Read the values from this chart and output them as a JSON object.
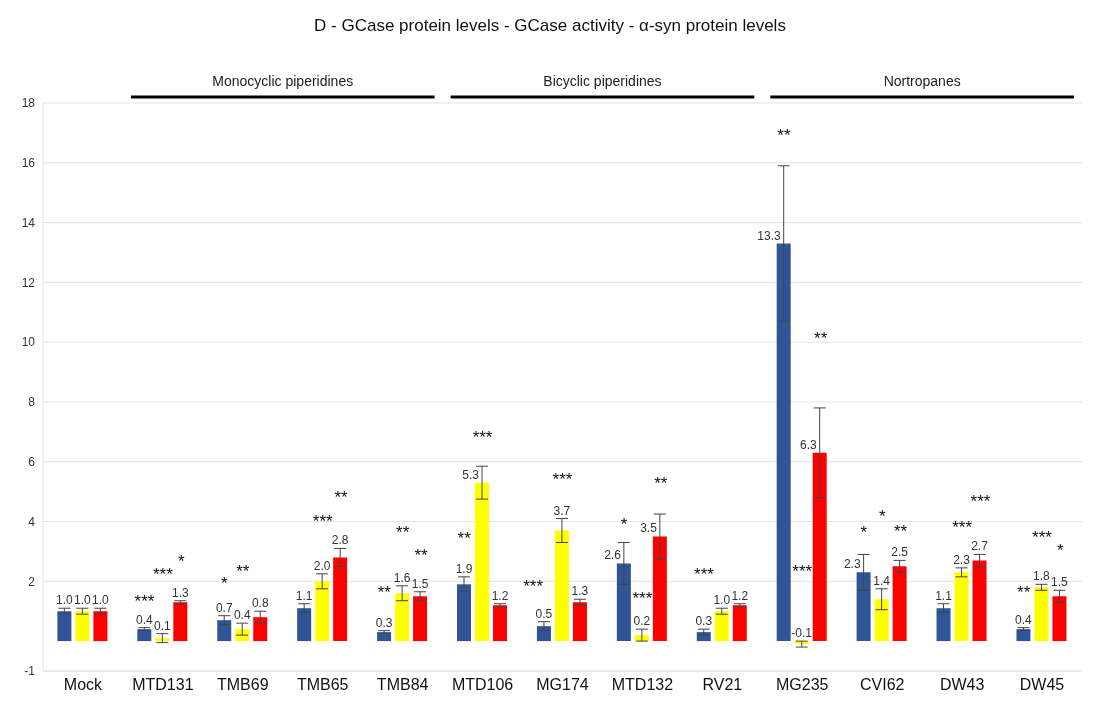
{
  "chart_data": {
    "type": "bar",
    "title": "D - GCase protein levels - GCase activity - α-syn protein levels",
    "categories": [
      "Mock",
      "MTD131",
      "TMB69",
      "TMB65",
      "TMB84",
      "MTD106",
      "MG174",
      "MTD132",
      "RV21",
      "MG235",
      "CVI62",
      "DW43",
      "DW45"
    ],
    "series": [
      {
        "color": "#2f5597",
        "values": [
          1.0,
          0.4,
          0.7,
          1.1,
          0.3,
          1.9,
          0.5,
          2.6,
          0.3,
          13.3,
          2.3,
          1.1,
          0.4
        ],
        "errors": [
          0.1,
          0.05,
          0.15,
          0.15,
          0.05,
          0.25,
          0.15,
          0.7,
          0.1,
          2.6,
          0.6,
          0.15,
          0.05
        ],
        "value_labels": [
          "1.0",
          "0.4",
          "0.7",
          "1.1",
          "0.3",
          "1.9",
          "0.5",
          "2.6",
          "0.3",
          "13.3",
          "2.3",
          "1.1",
          "0.4"
        ]
      },
      {
        "color": "#ffff00",
        "values": [
          1.0,
          0.1,
          0.4,
          2.0,
          1.6,
          5.3,
          3.7,
          0.2,
          1.0,
          -0.1,
          1.4,
          2.3,
          1.8
        ],
        "errors": [
          0.1,
          0.15,
          0.2,
          0.25,
          0.25,
          0.55,
          0.4,
          0.2,
          0.1,
          0.1,
          0.35,
          0.15,
          0.1
        ],
        "value_labels": [
          "1.0",
          "0.1",
          "0.4",
          "2.0",
          "1.6",
          "5.3",
          "3.7",
          "0.2",
          "1.0",
          "-0.1",
          "1.4",
          "2.3",
          "1.8"
        ]
      },
      {
        "color": "#ff0000",
        "values": [
          1.0,
          1.3,
          0.8,
          2.8,
          1.5,
          1.2,
          1.3,
          3.5,
          1.2,
          6.3,
          2.5,
          2.7,
          1.5
        ],
        "errors": [
          0.1,
          0.05,
          0.2,
          0.3,
          0.15,
          0.05,
          0.1,
          0.75,
          0.05,
          1.5,
          0.2,
          0.2,
          0.2
        ],
        "value_labels": [
          "1.0",
          "1.3",
          "0.8",
          "2.8",
          "1.5",
          "1.2",
          "1.3",
          "3.5",
          "1.2",
          "6.3",
          "2.5",
          "2.7",
          "1.5"
        ]
      }
    ],
    "ylim": [
      -1,
      18
    ],
    "yticks": [
      -1,
      2,
      4,
      6,
      8,
      10,
      12,
      14,
      16,
      18
    ],
    "grid": "y",
    "annotations": [
      "Monocyclic piperidines",
      "Bicyclic piperidines",
      "Nortropanes",
      "***",
      "***",
      "*",
      "*",
      "**",
      "***",
      "**",
      "**",
      "**",
      "**",
      "**",
      "***",
      "***",
      "***",
      "*",
      "***",
      "**",
      "***",
      "**",
      "***",
      "**",
      "*",
      "*",
      "**",
      "***",
      "***",
      "**",
      "***",
      "*"
    ]
  }
}
